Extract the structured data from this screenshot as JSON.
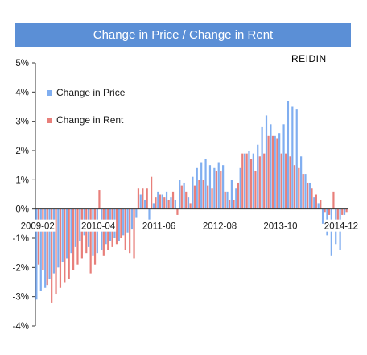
{
  "chart_data": {
    "type": "bar",
    "title": "Change in Price / Change in Rent",
    "brand": "REIDIN",
    "ylim": [
      -4,
      5
    ],
    "y_ticks": [
      5,
      4,
      3,
      2,
      1,
      0,
      -1,
      -2,
      -3,
      -4
    ],
    "y_tick_labels": [
      "5%",
      "4%",
      "3%",
      "2%",
      "1%",
      "0%",
      "-1%",
      "-2%",
      "-3%",
      "-4%"
    ],
    "x_tick_labels": [
      "2009-02",
      "2010-04",
      "2011-06",
      "2012-08",
      "2013-10",
      "2014-12"
    ],
    "x_start": "2009-02",
    "grid": false,
    "legend": "upper-left",
    "colors": {
      "price": "#80aef0",
      "rent": "#e87f7a",
      "title_bar": "#5b8fd6"
    },
    "months": [
      "2009-02",
      "2009-03",
      "2009-04",
      "2009-05",
      "2009-06",
      "2009-07",
      "2009-08",
      "2009-09",
      "2009-10",
      "2009-11",
      "2009-12",
      "2010-01",
      "2010-02",
      "2010-03",
      "2010-04",
      "2010-05",
      "2010-06",
      "2010-07",
      "2010-08",
      "2010-09",
      "2010-10",
      "2010-11",
      "2010-12",
      "2011-01",
      "2011-02",
      "2011-03",
      "2011-04",
      "2011-05",
      "2011-06",
      "2011-07",
      "2011-08",
      "2011-09",
      "2011-10",
      "2011-11",
      "2011-12",
      "2012-01",
      "2012-02",
      "2012-03",
      "2012-04",
      "2012-05",
      "2012-06",
      "2012-07",
      "2012-08",
      "2012-09",
      "2012-10",
      "2012-11",
      "2012-12",
      "2013-01",
      "2013-02",
      "2013-03",
      "2013-04",
      "2013-05",
      "2013-06",
      "2013-07",
      "2013-08",
      "2013-09",
      "2013-10",
      "2013-11",
      "2013-12",
      "2014-01",
      "2014-02",
      "2014-03",
      "2014-04",
      "2014-05",
      "2014-06",
      "2014-07",
      "2014-08",
      "2014-09",
      "2014-10",
      "2014-11",
      "2014-12",
      "2015-01"
    ],
    "series": [
      {
        "name": "Change in Price",
        "values": [
          -3.1,
          -2.8,
          -2.7,
          -2.4,
          -2.2,
          -2.0,
          -1.8,
          -1.7,
          -1.5,
          -1.3,
          -1.1,
          -0.9,
          -1.3,
          -1.6,
          -1.5,
          -1.4,
          -1.2,
          -1.1,
          -1.0,
          -1.1,
          -0.9,
          -0.8,
          -0.7,
          -0.3,
          0.5,
          0.3,
          -0.4,
          0.2,
          0.6,
          0.5,
          0.6,
          0.4,
          0.3,
          1.0,
          0.9,
          0.4,
          1.1,
          1.4,
          1.6,
          1.7,
          1.5,
          1.4,
          1.6,
          1.5,
          0.6,
          1.0,
          0.7,
          1.4,
          1.9,
          2.0,
          1.9,
          2.2,
          2.8,
          3.2,
          2.9,
          2.5,
          2.6,
          2.9,
          3.7,
          3.5,
          3.4,
          1.8,
          1.2,
          0.9,
          0.4,
          0.2,
          -0.5,
          -0.9,
          -1.6,
          -1.2,
          -1.4,
          -0.2
        ]
      },
      {
        "name": "Change in Rent",
        "values": [
          -1.9,
          -2.1,
          -2.6,
          -3.2,
          -2.9,
          -2.7,
          -2.5,
          -2.4,
          -2.1,
          -1.9,
          -1.7,
          -1.5,
          -2.2,
          -1.9,
          0.65,
          -1.6,
          -1.4,
          -1.3,
          -1.2,
          -1.0,
          -1.4,
          -1.5,
          -1.7,
          0.7,
          0.7,
          0.7,
          1.1,
          0.4,
          0.5,
          0.4,
          0.3,
          0.6,
          -0.2,
          0.8,
          0.6,
          0.2,
          0.8,
          1.0,
          1.0,
          0.8,
          0.7,
          1.3,
          1.3,
          0.6,
          0.3,
          0.3,
          0.9,
          1.9,
          1.9,
          1.7,
          1.3,
          1.8,
          1.9,
          2.5,
          2.5,
          2.4,
          1.9,
          1.9,
          1.8,
          1.5,
          1.4,
          1.2,
          0.9,
          0.7,
          0.5,
          0.3,
          -0.1,
          -0.2,
          0.6,
          -0.6,
          -0.2,
          -0.1
        ]
      }
    ]
  }
}
